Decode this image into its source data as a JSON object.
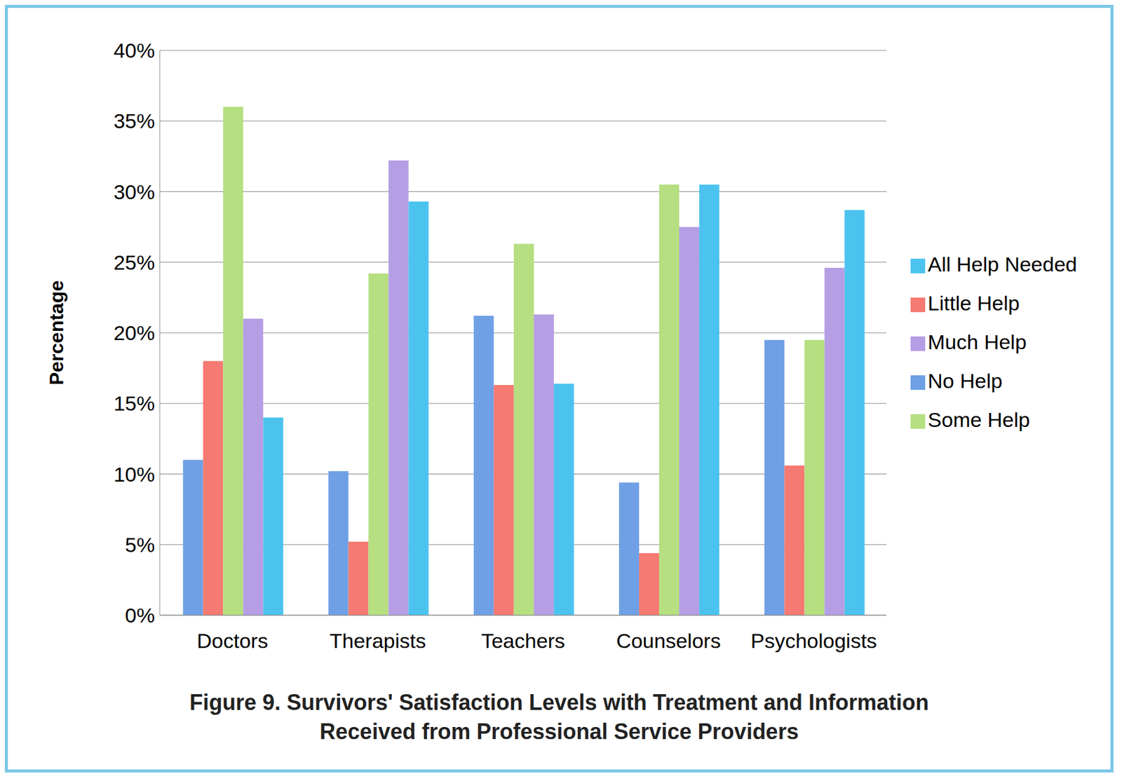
{
  "chart_data": {
    "type": "bar",
    "title": "Figure 9.  Survivors' Satisfaction Levels with Treatment and Information Received from Professional Service Providers",
    "y_label": "Percentage",
    "categories": [
      "Doctors",
      "Therapists",
      "Teachers",
      "Counselors",
      "Psychologists"
    ],
    "series": [
      {
        "name": "No Help",
        "color": "#6fa0e6",
        "values": [
          11.0,
          10.2,
          21.2,
          9.4,
          19.5
        ]
      },
      {
        "name": "Little Help",
        "color": "#f47a72",
        "values": [
          18.0,
          5.2,
          16.3,
          4.4,
          10.6
        ]
      },
      {
        "name": "Some Help",
        "color": "#b5df80",
        "values": [
          36.0,
          24.2,
          26.3,
          30.5,
          19.5
        ]
      },
      {
        "name": "Much Help",
        "color": "#b59ee3",
        "values": [
          21.0,
          32.2,
          21.3,
          27.5,
          24.6
        ]
      },
      {
        "name": "All Help Needed",
        "color": "#4cc3ef",
        "values": [
          14.0,
          29.3,
          16.4,
          30.5,
          28.7
        ]
      }
    ],
    "ylim": [
      0,
      40
    ],
    "yticks": [
      {
        "value": 0,
        "label": "0%"
      },
      {
        "value": 5,
        "label": "5%"
      },
      {
        "value": 10,
        "label": "10%"
      },
      {
        "value": 15,
        "label": "15%"
      },
      {
        "value": 20,
        "label": "20%"
      },
      {
        "value": 25,
        "label": "25%"
      },
      {
        "value": 30,
        "label": "30%"
      },
      {
        "value": 35,
        "label": "35%"
      },
      {
        "value": 40,
        "label": "40%"
      }
    ],
    "grid": true,
    "legend": "right"
  }
}
